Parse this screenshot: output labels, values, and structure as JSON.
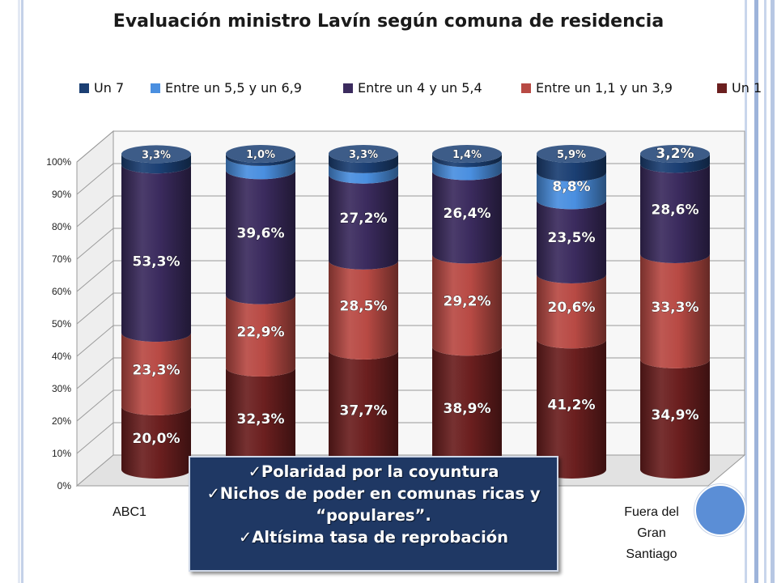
{
  "chart_data": {
    "type": "bar",
    "stacked": true,
    "three_d": true,
    "title": "Evaluación ministro Lavín según comuna de residencia",
    "categories": [
      "ABC1",
      "",
      "",
      "",
      "",
      "Fuera del Gran Santiago"
    ],
    "ylim": [
      0,
      100
    ],
    "y_ticks": [
      "0%",
      "10%",
      "20%",
      "30%",
      "40%",
      "50%",
      "60%",
      "70%",
      "80%",
      "90%",
      "100%"
    ],
    "legend_position": "top",
    "grid": true,
    "series": [
      {
        "name": "Un 1",
        "color": "#6b1f1f",
        "values": [
          20.0,
          32.3,
          37.7,
          38.9,
          41.2,
          34.9
        ],
        "labels": [
          "20,0%",
          "32,3%",
          "37,7%",
          "38,9%",
          "41,2%",
          "34,9%"
        ]
      },
      {
        "name": "Entre un 1,1 y un 3,9",
        "color": "#b84a44",
        "values": [
          23.3,
          22.9,
          28.5,
          29.2,
          20.6,
          33.3
        ],
        "labels": [
          "23,3%",
          "22,9%",
          "28,5%",
          "29,2%",
          "20,6%",
          "33,3%"
        ]
      },
      {
        "name": "Entre un 4 y un 5,4",
        "color": "#3b2b5e",
        "values": [
          53.3,
          39.6,
          27.2,
          26.4,
          23.5,
          28.6
        ],
        "labels": [
          "53,3%",
          "39,6%",
          "27,2%",
          "26,4%",
          "23,5%",
          "28,6%"
        ]
      },
      {
        "name": "Entre un 5,5 y un 6,9",
        "color": "#4a8fe0",
        "values": [
          0,
          4.2,
          3.3,
          4.1,
          8.8,
          0
        ],
        "labels": [
          "",
          "",
          "",
          "",
          "8,8%",
          ""
        ]
      },
      {
        "name": "Un 7",
        "color": "#1b3f73",
        "values": [
          3.3,
          1.0,
          3.3,
          1.4,
          5.9,
          3.2
        ],
        "labels": [
          "3,3%",
          "1,0%",
          "3,3%",
          "1,4%",
          "5,9%",
          "3,2%"
        ]
      }
    ],
    "legend_order": [
      "Un 7",
      "Entre un 5,5 y un 6,9",
      "Entre un 4 y un 5,4",
      "Entre un 1,1 y un 3,9",
      "Un 1"
    ]
  },
  "category_labels": {
    "first": "ABC1",
    "last_lines": [
      "Fuera del",
      "Gran",
      "Santiago"
    ]
  },
  "callout": {
    "bullet": "✓",
    "lines": [
      "Polaridad por la coyuntura",
      "Nichos de poder en comunas ricas y “populares”.",
      "Altísima tasa de reprobación"
    ]
  },
  "colors": {
    "rail_light": "#c9d6ec",
    "rail_mid": "#9db3da",
    "callout_bg": "#1f3864",
    "dot": "#5b8ed6"
  }
}
